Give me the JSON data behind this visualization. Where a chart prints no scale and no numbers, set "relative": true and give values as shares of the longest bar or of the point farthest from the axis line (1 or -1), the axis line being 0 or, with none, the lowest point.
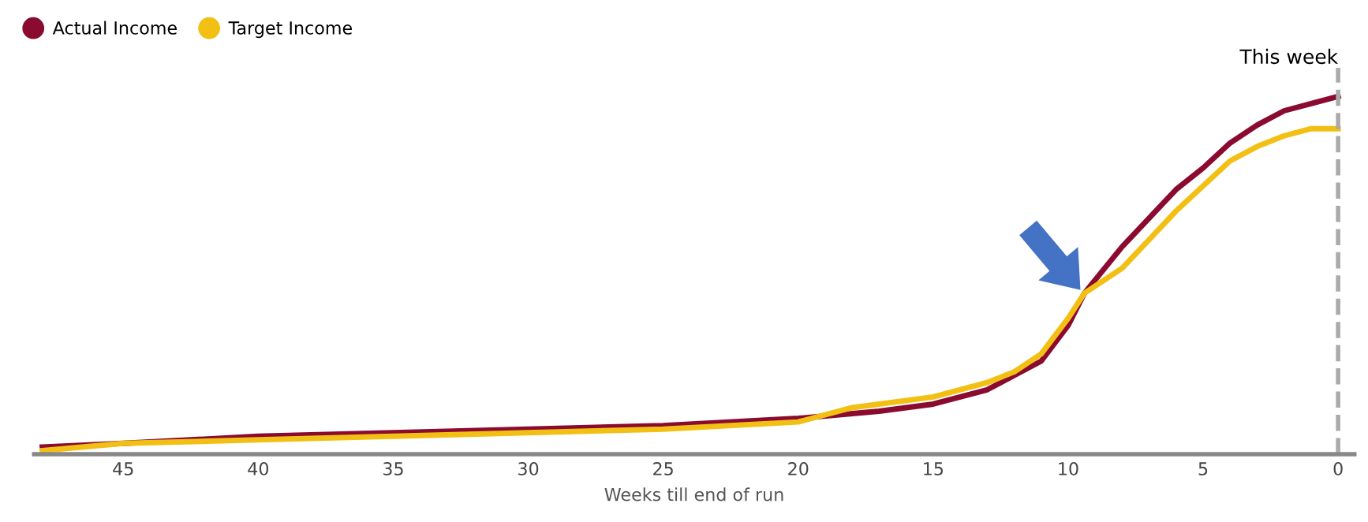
{
  "chart_data": {
    "type": "line",
    "relative": true,
    "xlabel": "Weeks till end of run",
    "xlim": [
      48.3,
      -0.6
    ],
    "xticks": [
      45,
      40,
      35,
      30,
      25,
      20,
      15,
      10,
      5,
      0
    ],
    "series": [
      {
        "name": "Actual Income",
        "color": "#8b0a30",
        "x": [
          48,
          45,
          40,
          35,
          30,
          25,
          20,
          17,
          15,
          13,
          11,
          10,
          9.4,
          8,
          7,
          6,
          5,
          4,
          3,
          2,
          1,
          0
        ],
        "values": [
          0.02,
          0.03,
          0.05,
          0.06,
          0.07,
          0.08,
          0.1,
          0.12,
          0.14,
          0.18,
          0.26,
          0.36,
          0.45,
          0.58,
          0.66,
          0.74,
          0.8,
          0.87,
          0.92,
          0.96,
          0.98,
          1
        ]
      },
      {
        "name": "Target Income",
        "color": "#f2c014",
        "x": [
          48,
          45,
          40,
          35,
          30,
          25,
          20,
          18,
          15,
          13,
          12,
          11,
          10,
          9.4,
          8,
          7,
          6,
          5,
          4,
          3,
          2,
          1,
          0
        ],
        "values": [
          0.01,
          0.03,
          0.04,
          0.05,
          0.06,
          0.07,
          0.09,
          0.13,
          0.16,
          0.2,
          0.23,
          0.28,
          0.38,
          0.45,
          0.52,
          0.6,
          0.68,
          0.75,
          0.82,
          0.86,
          0.89,
          0.91,
          0.91
        ]
      }
    ],
    "ref_lines": [
      {
        "axis": "x",
        "value": 0,
        "label": "This week",
        "color": "#aaaaaa",
        "line_style": "dashed"
      }
    ],
    "legend": "top left",
    "grid": false,
    "tick_labels": "x",
    "marker": "none",
    "line_style": "solid"
  }
}
